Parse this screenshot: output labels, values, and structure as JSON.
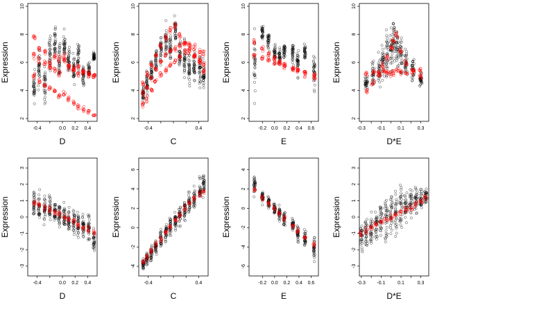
{
  "colors": {
    "observed": "#000000",
    "fitted": "#ff0000",
    "background": "#ffffff"
  },
  "chart_data": [
    {
      "type": "scatter",
      "xlabel": "D",
      "ylabel": "Expression",
      "xlim": [
        -0.55,
        0.55
      ],
      "ylim": [
        1.8,
        10.2
      ],
      "xticks": [
        -0.4,
        -0.2,
        0.0,
        0.2,
        0.4
      ],
      "xtick_labels": [
        "-0.4",
        "",
        "0.0",
        "0.2",
        "0.4"
      ],
      "yticks": [
        2,
        4,
        6,
        8,
        10
      ],
      "ytick_labels": [
        "2",
        "4",
        "6",
        "8",
        "10"
      ],
      "x_positions": [
        -0.45,
        -0.37,
        -0.28,
        -0.2,
        -0.12,
        -0.05,
        0.03,
        0.1,
        0.18,
        0.25,
        0.33,
        0.42,
        0.5
      ],
      "observed_y": [
        4.2,
        5.5,
        4.5,
        6.5,
        7.4,
        6.2,
        7.2,
        6.0,
        5.5,
        6.5,
        5.0,
        5.3,
        6.4
      ],
      "observed_spread": [
        1.8,
        2.0,
        2.0,
        2.2,
        2.0,
        1.8,
        1.6,
        1.8,
        1.8,
        1.8,
        1.4,
        1.2,
        0.6
      ],
      "series": [
        {
          "values": [
            6.5,
            6.2,
            6.0,
            5.7,
            5.4,
            5.2,
            6.2,
            5.8,
            5.5,
            5.2,
            5.3,
            5.2,
            5.0
          ]
        },
        {
          "values": [
            5.0,
            4.6,
            4.3,
            4.2,
            4.0,
            3.6,
            3.8,
            3.4,
            3.1,
            2.8,
            2.6,
            2.5,
            2.2
          ]
        },
        {
          "values": [
            7.8,
            7.0,
            6.8,
            6.0,
            6.4,
            6.2,
            6.4,
            5.8,
            5.5,
            5.7,
            5.4,
            5.2,
            5.0
          ]
        }
      ]
    },
    {
      "type": "scatter",
      "xlabel": "C",
      "ylabel": "Expression",
      "xlim": [
        -0.55,
        0.55
      ],
      "ylim": [
        1.8,
        10.2
      ],
      "xticks": [
        -0.4,
        -0.2,
        0.0,
        0.2,
        0.4
      ],
      "xtick_labels": [
        "-0.4",
        "",
        "",
        "",
        "0.4"
      ],
      "yticks": [
        2,
        4,
        6,
        8,
        10
      ],
      "ytick_labels": [
        "2",
        "4",
        "6",
        "8",
        "10"
      ],
      "x_positions": [
        -0.48,
        -0.42,
        -0.35,
        -0.28,
        -0.2,
        -0.12,
        -0.05,
        0.03,
        0.1,
        0.18,
        0.25,
        0.33,
        0.42,
        0.48
      ],
      "observed_y": [
        3.8,
        4.5,
        5.3,
        6.2,
        7.0,
        7.5,
        7.2,
        8.2,
        6.5,
        6.0,
        5.5,
        5.8,
        5.5,
        5.0
      ],
      "observed_spread": [
        1.0,
        1.5,
        1.5,
        1.8,
        2.0,
        2.0,
        1.6,
        1.6,
        1.8,
        2.0,
        2.0,
        2.0,
        2.0,
        1.8
      ],
      "series": [
        {
          "values": [
            3.7,
            4.2,
            4.8,
            5.5,
            6.0,
            6.5,
            6.8,
            7.0,
            7.2,
            7.4,
            7.3,
            7.1,
            6.8,
            6.6
          ]
        },
        {
          "values": [
            3.0,
            3.4,
            4.0,
            4.6,
            5.1,
            5.5,
            5.8,
            6.1,
            6.4,
            6.8,
            7.0,
            6.5,
            6.0,
            5.4
          ]
        },
        {
          "values": [
            4.5,
            5.2,
            5.8,
            6.5,
            7.2,
            7.8,
            8.3,
            8.6,
            8.0,
            7.4,
            6.8,
            6.4,
            6.2,
            5.8
          ]
        }
      ]
    },
    {
      "type": "scatter",
      "xlabel": "E",
      "ylabel": "Expression",
      "xlim": [
        -0.42,
        0.72
      ],
      "ylim": [
        1.8,
        10.2
      ],
      "xticks": [
        -0.2,
        0.0,
        0.2,
        0.4,
        0.6
      ],
      "xtick_labels": [
        "-0.2",
        "0.0",
        "0.2",
        "0.4",
        "0.6"
      ],
      "yticks": [
        2,
        4,
        6,
        8,
        10
      ],
      "ytick_labels": [
        "2",
        "4",
        "6",
        "8",
        "10"
      ],
      "x_positions": [
        -0.33,
        -0.2,
        -0.1,
        0.0,
        0.08,
        0.16,
        0.3,
        0.38,
        0.5,
        0.65
      ],
      "observed_y": [
        6.0,
        8.2,
        7.5,
        6.8,
        6.5,
        6.8,
        6.5,
        6.0,
        6.7,
        5.5
      ],
      "observed_spread": [
        4.0,
        1.2,
        1.2,
        1.5,
        1.2,
        1.2,
        1.2,
        1.5,
        1.0,
        2.6
      ],
      "series": [
        {
          "values": [
            6.5,
            6.4,
            6.2,
            6.0,
            5.9,
            5.8,
            5.6,
            5.4,
            5.3,
            5.1
          ]
        },
        {
          "values": [
            7.5,
            7.0,
            6.6,
            6.3,
            6.0,
            5.8,
            5.6,
            5.4,
            5.2,
            5.0
          ]
        }
      ]
    },
    {
      "type": "scatter",
      "xlabel": "D*E",
      "ylabel": "Expression",
      "xlim": [
        -0.32,
        0.38
      ],
      "ylim": [
        1.8,
        10.2
      ],
      "xticks": [
        -0.3,
        -0.2,
        -0.1,
        0.0,
        0.1,
        0.2,
        0.3
      ],
      "xtick_labels": [
        "-0.3",
        "",
        "-0.1",
        "",
        "0.1",
        "",
        "0.3"
      ],
      "yticks": [
        2,
        4,
        6,
        8,
        10
      ],
      "ytick_labels": [
        "2",
        "4",
        "6",
        "8",
        "10"
      ],
      "x_positions": [
        -0.25,
        -0.18,
        -0.12,
        -0.08,
        -0.04,
        0.0,
        0.03,
        0.06,
        0.1,
        0.15,
        0.22,
        0.3
      ],
      "observed_y": [
        4.5,
        5.0,
        5.5,
        6.0,
        6.5,
        7.0,
        7.5,
        7.0,
        6.5,
        6.0,
        5.5,
        4.8
      ],
      "observed_spread": [
        1.0,
        1.5,
        2.0,
        2.5,
        2.5,
        3.0,
        2.8,
        2.8,
        2.5,
        2.0,
        1.5,
        1.0
      ],
      "series": [
        {
          "values": [
            5.2,
            5.3,
            5.2,
            5.4,
            5.3,
            5.2,
            5.3,
            5.4,
            5.3,
            5.2,
            5.3,
            5.4
          ]
        },
        {
          "values": [
            4.0,
            4.6,
            5.2,
            5.8,
            6.4,
            7.0,
            7.6,
            8.0,
            6.8,
            6.0,
            5.4,
            5.0
          ]
        }
      ]
    },
    {
      "type": "scatter",
      "xlabel": "D",
      "ylabel": "Expression",
      "xlim": [
        -0.55,
        0.55
      ],
      "ylim": [
        -3.6,
        3.6
      ],
      "xticks": [
        -0.4,
        -0.2,
        0.0,
        0.2,
        0.4
      ],
      "xtick_labels": [
        "-0.4",
        "",
        "0.0",
        "0.2",
        "0.4"
      ],
      "yticks": [
        -3,
        -2,
        -1,
        0,
        1,
        2,
        3
      ],
      "ytick_labels": [
        "-3",
        "-2",
        "-1",
        "0",
        "1",
        "2",
        "3"
      ],
      "x_positions": [
        -0.45,
        -0.37,
        -0.28,
        -0.2,
        -0.12,
        -0.05,
        0.03,
        0.1,
        0.18,
        0.25,
        0.33,
        0.42,
        0.5
      ],
      "observed_y": [
        0.9,
        0.7,
        0.5,
        0.4,
        0.3,
        0.1,
        0.0,
        -0.1,
        -0.2,
        -0.4,
        -0.6,
        -0.7,
        -1.5
      ],
      "observed_spread": [
        1.4,
        1.5,
        1.5,
        1.4,
        1.4,
        1.4,
        1.4,
        1.4,
        1.4,
        1.4,
        1.2,
        1.6,
        1.2
      ],
      "series": [
        {
          "values": [
            0.9,
            0.75,
            0.6,
            0.45,
            0.3,
            0.15,
            0.0,
            -0.15,
            -0.3,
            -0.45,
            -0.6,
            -0.8,
            -0.95
          ]
        }
      ]
    },
    {
      "type": "scatter",
      "xlabel": "C",
      "ylabel": "Expression",
      "xlim": [
        -0.55,
        0.55
      ],
      "ylim": [
        -5.0,
        7.2
      ],
      "xticks": [
        -0.4,
        -0.2,
        0.0,
        0.2,
        0.4
      ],
      "xtick_labels": [
        "-0.4",
        "",
        "",
        "",
        "0.4"
      ],
      "yticks": [
        -4,
        -2,
        0,
        2,
        4,
        6
      ],
      "ytick_labels": [
        "-4",
        "-2",
        "0",
        "2",
        "4",
        "6"
      ],
      "x_positions": [
        -0.48,
        -0.42,
        -0.35,
        -0.28,
        -0.2,
        -0.12,
        -0.05,
        0.03,
        0.1,
        0.18,
        0.25,
        0.33,
        0.42,
        0.48
      ],
      "observed_y": [
        -3.8,
        -3.2,
        -2.6,
        -2.0,
        -1.2,
        -0.5,
        0.1,
        0.7,
        1.2,
        1.9,
        2.5,
        3.0,
        3.8,
        4.4
      ],
      "observed_spread": [
        1.0,
        1.2,
        1.4,
        1.5,
        1.6,
        1.8,
        1.8,
        1.8,
        1.8,
        1.8,
        1.8,
        1.8,
        2.0,
        2.0
      ],
      "series": [
        {
          "values": [
            -3.6,
            -3.0,
            -2.4,
            -1.8,
            -1.1,
            -0.5,
            0.1,
            0.7,
            1.3,
            1.9,
            2.5,
            3.0,
            3.5,
            3.8
          ]
        }
      ]
    },
    {
      "type": "scatter",
      "xlabel": "E",
      "ylabel": "Expression",
      "xlim": [
        -0.42,
        0.72
      ],
      "ylim": [
        -7.0,
        5.2
      ],
      "xticks": [
        -0.2,
        0.0,
        0.2,
        0.4,
        0.6
      ],
      "xtick_labels": [
        "-0.2",
        "0.0",
        "0.2",
        "0.4",
        "0.6"
      ],
      "yticks": [
        -6,
        -4,
        -2,
        0,
        2,
        4
      ],
      "ytick_labels": [
        "-6",
        "-4",
        "-2",
        "0",
        "2",
        "4"
      ],
      "x_positions": [
        -0.33,
        -0.2,
        -0.1,
        0.0,
        0.08,
        0.16,
        0.3,
        0.38,
        0.5,
        0.65
      ],
      "observed_y": [
        2.4,
        1.2,
        0.6,
        0.0,
        -0.4,
        -1.0,
        -1.8,
        -2.6,
        -3.2,
        -4.0
      ],
      "observed_spread": [
        1.6,
        1.2,
        1.2,
        1.4,
        1.2,
        1.4,
        1.4,
        1.6,
        1.4,
        2.4
      ],
      "series": [
        {
          "values": [
            2.0,
            1.1,
            0.5,
            0.0,
            -0.5,
            -1.0,
            -1.8,
            -2.4,
            -3.0,
            -3.8
          ]
        }
      ]
    },
    {
      "type": "scatter",
      "xlabel": "D*E",
      "ylabel": "Expression",
      "xlim": [
        -0.32,
        0.38
      ],
      "ylim": [
        -3.6,
        3.6
      ],
      "xticks": [
        -0.3,
        -0.2,
        -0.1,
        0.0,
        0.1,
        0.2,
        0.3
      ],
      "xtick_labels": [
        "-0.3",
        "",
        "-0.1",
        "",
        "0.1",
        "",
        "0.3"
      ],
      "yticks": [
        -3,
        -2,
        -1,
        0,
        1,
        2,
        3
      ],
      "ytick_labels": [
        "-3",
        "-2",
        "-1",
        "0",
        "1",
        "2",
        "3"
      ],
      "x_positions": [
        -0.3,
        -0.25,
        -0.2,
        -0.15,
        -0.1,
        -0.05,
        0.0,
        0.05,
        0.1,
        0.15,
        0.2,
        0.25,
        0.3,
        0.35
      ],
      "observed_y": [
        -1.2,
        -1.0,
        -0.8,
        -0.5,
        -0.3,
        -0.1,
        0.1,
        0.3,
        0.5,
        0.7,
        0.9,
        1.0,
        1.1,
        1.2
      ],
      "observed_spread": [
        1.2,
        1.4,
        1.6,
        1.8,
        2.2,
        2.6,
        2.6,
        2.4,
        2.2,
        2.0,
        1.6,
        1.4,
        1.2,
        1.0
      ],
      "series": [
        {
          "values": [
            -1.0,
            -0.8,
            -0.6,
            -0.45,
            -0.3,
            -0.15,
            0.0,
            0.15,
            0.3,
            0.45,
            0.6,
            0.8,
            1.0,
            1.2
          ]
        }
      ]
    }
  ]
}
